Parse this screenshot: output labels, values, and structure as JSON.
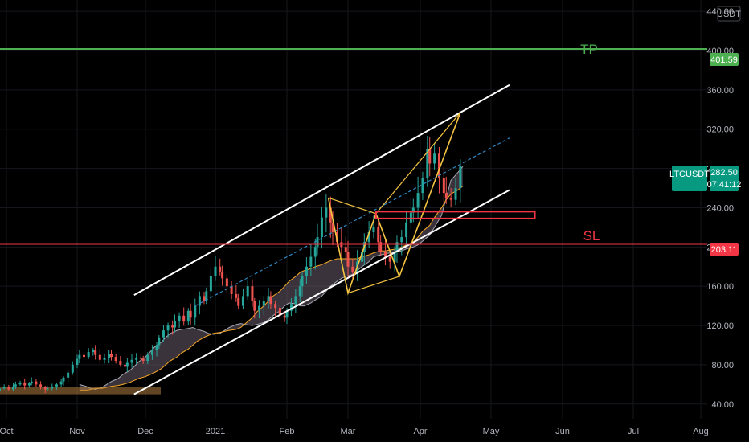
{
  "chart_data": {
    "type": "candlestick",
    "symbol": "LTCUSDT",
    "currency": "USDT",
    "x_ticks": [
      "Oct",
      "Nov",
      "Dec",
      "2021",
      "Feb",
      "Mar",
      "Apr",
      "May",
      "Jun",
      "Jul",
      "Aug"
    ],
    "y_ticks": [
      "40.00",
      "80.00",
      "120.00",
      "160.00",
      "200.00",
      "240.00",
      "280.00",
      "320.00",
      "360.00",
      "400.00",
      "440.00"
    ],
    "ylim": [
      30,
      445
    ],
    "last_price": {
      "value": 282.5,
      "label": "282.50",
      "countdown": "07:41:12"
    },
    "levels": [
      {
        "name": "TP",
        "value": 401.59,
        "label": "401.59",
        "color": "#4caf50"
      },
      {
        "name": "SL",
        "value": 203.11,
        "label": "203.11",
        "color": "#f23645"
      }
    ],
    "closes": [
      55,
      52,
      54,
      51,
      53,
      56,
      57,
      55,
      58,
      60,
      62,
      59,
      61,
      63,
      60,
      57,
      55,
      56,
      58,
      60,
      63,
      67,
      72,
      80,
      86,
      90,
      88,
      93,
      95,
      90,
      85,
      87,
      91,
      88,
      84,
      80,
      78,
      82,
      85,
      87,
      86,
      84,
      90,
      95,
      100,
      108,
      115,
      120,
      118,
      125,
      130,
      124,
      135,
      128,
      140,
      150,
      145,
      155,
      170,
      180,
      175,
      168,
      160,
      152,
      148,
      140,
      150,
      160,
      145,
      135,
      140,
      145,
      150,
      142,
      138,
      130,
      128,
      135,
      142,
      150,
      160,
      170,
      180,
      190,
      200,
      210,
      230,
      240,
      225,
      215,
      205,
      200,
      195,
      180,
      175,
      185,
      195,
      205,
      215,
      220,
      205,
      195,
      190,
      185,
      195,
      205,
      210,
      225,
      235,
      240,
      255,
      270,
      300,
      285,
      295,
      270,
      255,
      250,
      248,
      260,
      282
    ],
    "cloud": {
      "start_index": 25,
      "span_a": [
        60,
        58,
        56,
        55,
        57,
        60,
        63,
        66,
        70,
        74,
        78,
        83,
        88,
        93,
        98,
        103,
        108,
        112,
        115,
        116,
        117,
        118,
        116,
        114,
        112,
        111,
        112,
        115,
        118,
        121,
        122,
        121,
        120,
        121,
        123,
        126,
        130,
        135,
        140,
        143,
        142,
        140,
        140,
        143,
        146,
        150,
        155,
        160,
        165,
        168,
        170,
        172,
        176,
        180,
        185,
        190,
        192,
        193,
        194,
        195,
        196,
        198,
        200,
        202,
        206,
        212,
        220,
        232,
        250,
        268,
        276,
        282
      ],
      "span_b": [
        54,
        54,
        55,
        56,
        56,
        57,
        58,
        59,
        60,
        62,
        64,
        66,
        68,
        70,
        72,
        76,
        80,
        84,
        88,
        92,
        96,
        100,
        104,
        108,
        110,
        112,
        113,
        114,
        115,
        116,
        118,
        122,
        128,
        134,
        140,
        145,
        150,
        155,
        160,
        165,
        170,
        174,
        176,
        178,
        180,
        182,
        184,
        186,
        188,
        188,
        188,
        188,
        188,
        190,
        192,
        194,
        196,
        196,
        197,
        198,
        200,
        202,
        205,
        210,
        216,
        222,
        230,
        240,
        248,
        254,
        258,
        262
      ]
    },
    "channel": {
      "upper": [
        {
          "x": "2020-11-26",
          "y": 151
        },
        {
          "x": "2021-05-09",
          "y": 365
        }
      ],
      "middle": [
        {
          "x": "2020-12-23",
          "y": 140
        },
        {
          "x": "2021-05-09",
          "y": 311
        }
      ],
      "lower": [
        {
          "x": "2020-11-26",
          "y": 50
        },
        {
          "x": "2021-05-09",
          "y": 258
        }
      ]
    },
    "pattern": {
      "points": [
        {
          "x": "2021-02-20",
          "y": 250
        },
        {
          "x": "2021-03-01",
          "y": 153
        },
        {
          "x": "2021-03-13",
          "y": 234
        },
        {
          "x": "2021-03-23",
          "y": 170
        },
        {
          "x": "2021-04-18",
          "y": 337
        }
      ],
      "extra": [
        {
          "x": "2021-02-20",
          "y": 250
        },
        {
          "x": "2021-03-13",
          "y": 234
        }
      ]
    },
    "zone": {
      "x_start": "2021-03-13",
      "x_end": "2021-05-20",
      "y_top": 236,
      "y_bottom": 229
    },
    "annotations": {
      "tp": "TP",
      "sl": "SL"
    }
  }
}
